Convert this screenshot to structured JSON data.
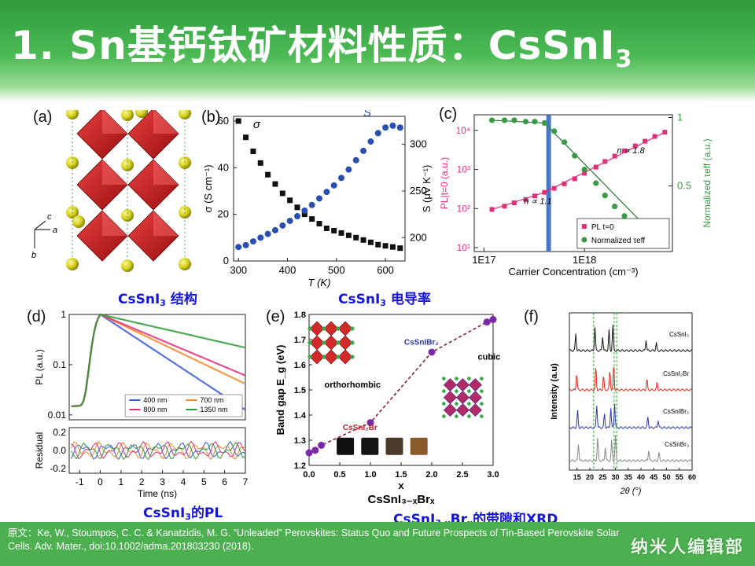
{
  "header": {
    "title_main": "1. Sn基钙钛矿材料性质：CsSnI",
    "title_sub": "3"
  },
  "panels": {
    "a": {
      "label": "(a)",
      "axis_a": "a",
      "axis_b": "b",
      "axis_c": "c"
    },
    "b": {
      "label": "(b)"
    },
    "c": {
      "label": "(c)"
    },
    "d": {
      "label": "(d)"
    },
    "e": {
      "label": "(e)"
    },
    "f": {
      "label": "(f)"
    }
  },
  "captions": {
    "structure": {
      "pre": "CsSnI",
      "sub": "3",
      "post": " 结构"
    },
    "conductivity": {
      "pre": "CsSnI",
      "sub": "3",
      "post": " 电导率"
    },
    "pl": {
      "pre": "CsSnI",
      "sub": "3",
      "post": "的PL"
    },
    "bandgap": {
      "pre": "CsSnI",
      "sub1": "3-x",
      "mid": "Br",
      "sub2": "x",
      "post": "的带隙和XRD"
    }
  },
  "footer": {
    "citation": "原文：Ke, W., Stoumpos, C. C. & Kanatzidis, M. G. “Unleaded” Perovskites: Status Quo and Future Prospects of Tin-Based Perovskite Solar Cells. Adv. Mater., doi:10.1002/adma.201803230 (2018).",
    "brand": "纳米人编辑部"
  },
  "chart_data": [
    {
      "id": "b",
      "type": "scatter",
      "xlabel": "T (K)",
      "ylabel": "σ (S cm⁻¹)",
      "y2label": "S (μV K⁻¹)",
      "xlim": [
        290,
        640
      ],
      "ylim": [
        0,
        62
      ],
      "y2lim": [
        175,
        330
      ],
      "xticks": [
        300,
        400,
        500,
        600
      ],
      "yticks": [
        0,
        20,
        40,
        60
      ],
      "y2ticks": [
        200,
        250,
        300
      ],
      "series": [
        {
          "name": "σ",
          "axis": "left",
          "color": "#111111",
          "x": [
            300,
            315,
            330,
            345,
            360,
            375,
            390,
            405,
            420,
            435,
            450,
            465,
            480,
            495,
            510,
            525,
            540,
            555,
            570,
            585,
            600,
            615,
            630
          ],
          "y": [
            60,
            53,
            47,
            42,
            37,
            33,
            29,
            26,
            23,
            20,
            18,
            16,
            14,
            13,
            12,
            11,
            10,
            9,
            8,
            7,
            6.5,
            6,
            5.5
          ]
        },
        {
          "name": "S",
          "axis": "right",
          "color": "#2a4fb0",
          "x": [
            300,
            315,
            330,
            345,
            360,
            375,
            390,
            405,
            420,
            435,
            450,
            465,
            480,
            495,
            510,
            525,
            540,
            555,
            570,
            585,
            600,
            615,
            630
          ],
          "y": [
            190,
            192,
            196,
            200,
            204,
            208,
            213,
            218,
            223,
            229,
            235,
            242,
            249,
            256,
            264,
            273,
            283,
            293,
            303,
            312,
            318,
            320,
            318
          ]
        }
      ]
    },
    {
      "id": "c",
      "type": "scatter",
      "xlabel": "Carrier Concentration (cm⁻³)",
      "ylabel": "PL|t=0 (a.u.)",
      "y2label": "Normalized τeff (a.u.)",
      "xscale": "log",
      "yscale": "log",
      "xticks": [
        "1E17",
        "1E18"
      ],
      "yticks": [
        "10¹",
        "10²",
        "10³",
        "10⁴"
      ],
      "y2ticks": [
        "0.5",
        "1"
      ],
      "annotations": [
        "n ∝ 1.1",
        "n ∝ 1.8"
      ],
      "series": [
        {
          "name": "PL t=0",
          "color": "#e0307a",
          "x": [
            1.2e+17,
            1.6e+17,
            2e+17,
            2.6e+17,
            3.2e+17,
            4e+17,
            5e+17,
            6.3e+17,
            8e+17,
            1e+18,
            1.3e+18,
            1.6e+18,
            2e+18,
            2.5e+18,
            3.2e+18,
            4e+18,
            5e+18,
            6.3e+18
          ],
          "y": [
            95,
            115,
            140,
            170,
            210,
            260,
            330,
            430,
            580,
            800,
            1150,
            1600,
            2200,
            3000,
            4000,
            5300,
            7000,
            9000
          ]
        },
        {
          "name": "Normalized τeff",
          "color": "#3a9a45",
          "x": [
            1.2e+17,
            1.6e+17,
            2e+17,
            2.6e+17,
            3.2e+17,
            4e+17,
            5e+17,
            6.3e+17,
            8e+17,
            1e+18,
            1.3e+18,
            1.6e+18,
            2e+18,
            2.5e+18,
            3.2e+18,
            4e+18,
            5e+18,
            6.3e+18
          ],
          "y": [
            0.98,
            0.98,
            0.98,
            0.97,
            0.97,
            0.96,
            0.9,
            0.82,
            0.72,
            0.62,
            0.52,
            0.43,
            0.35,
            0.28,
            0.21,
            0.15,
            0.1,
            0.06
          ]
        }
      ]
    },
    {
      "id": "d",
      "type": "line",
      "xlabel": "Time (ns)",
      "ylabel": "PL (a.u.)",
      "y2label": "Residual",
      "xlim": [
        -1.5,
        7
      ],
      "xticks": [
        -1,
        0,
        1,
        2,
        3,
        4,
        5,
        6,
        7
      ],
      "yticks": [
        "0.01",
        "0.1",
        "1"
      ],
      "residual_ticks": [
        "0.2",
        "0.0",
        "-0.2"
      ],
      "series": [
        {
          "name": "400 nm",
          "color": "#3a5bd0",
          "tau": 1.6
        },
        {
          "name": "700 nm",
          "color": "#f08a2a",
          "tau": 2.2
        },
        {
          "name": "800 nm",
          "color": "#e0307a",
          "tau": 2.5
        },
        {
          "name": "1350 nm",
          "color": "#2f9a3a",
          "tau": 4.6
        }
      ]
    },
    {
      "id": "e",
      "type": "line",
      "xlabel": "x",
      "xlabel2": "CsSnI₃₋ₓBrₓ",
      "ylabel": "Band gap E_g (eV)",
      "xlim": [
        0,
        3.0
      ],
      "ylim": [
        1.2,
        1.8
      ],
      "xticks": [
        "0.0",
        "0.5",
        "1.0",
        "1.5",
        "2.0",
        "2.5",
        "3.0"
      ],
      "yticks": [
        "1.2",
        "1.3",
        "1.4",
        "1.5",
        "1.6",
        "1.7",
        "1.8"
      ],
      "annotations": [
        "orthorhombic",
        "cubic",
        "CsSnI₂Br",
        "CsSnIBr₂"
      ],
      "x": [
        0,
        0.1,
        0.2,
        1.0,
        2.0,
        2.9,
        3.0
      ],
      "y": [
        1.25,
        1.26,
        1.28,
        1.37,
        1.65,
        1.77,
        1.78
      ]
    },
    {
      "id": "f",
      "type": "line",
      "xlabel": "2θ (°)",
      "ylabel": "Intensity (a.u)",
      "xlim": [
        12,
        60
      ],
      "xticks": [
        15,
        20,
        25,
        30,
        35,
        40,
        45,
        50,
        55,
        60
      ],
      "series": [
        {
          "name": "CsSnI₃",
          "color": "#111111"
        },
        {
          "name": "CsSnI₂Br",
          "color": "#dd2a1a"
        },
        {
          "name": "CsSnIBr₂",
          "color": "#2a3aa8"
        },
        {
          "name": "CsSnBr₃",
          "color": "#888888"
        }
      ]
    }
  ]
}
